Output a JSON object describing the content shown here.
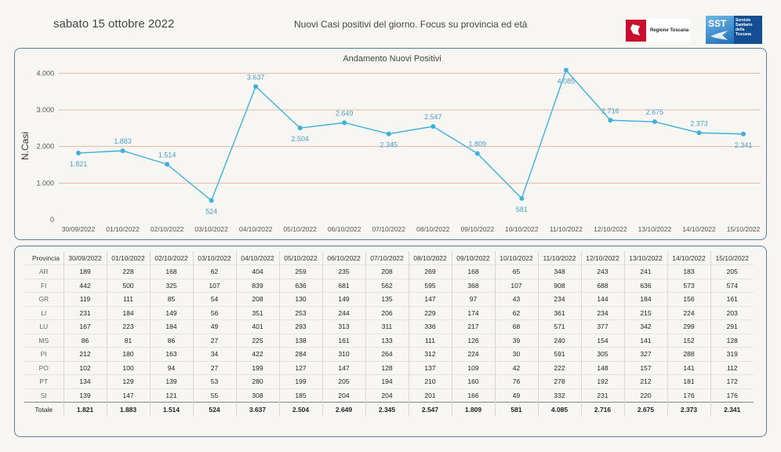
{
  "header": {
    "date": "sabato 15 ottobre 2022",
    "subtitle": "Nuovi Casi positivi del giorno. Focus su provincia ed età",
    "logo_regione": "Regione Toscana",
    "logo_sst_short": "SST",
    "logo_sst_text": "Servizio Sanitario della Toscana"
  },
  "chart_data": {
    "type": "line",
    "title": "Andamento Nuovi Positivi",
    "xlabel": "",
    "ylabel": "N.Casi",
    "ylim": [
      0,
      4200
    ],
    "yticks": [
      0,
      1000,
      2000,
      3000,
      4000
    ],
    "ytick_labels": [
      "0",
      "1.000",
      "2.000",
      "3.000",
      "4.000"
    ],
    "categories": [
      "30/09/2022",
      "01/10/2022",
      "02/10/2022",
      "03/10/2022",
      "04/10/2022",
      "05/10/2022",
      "06/10/2022",
      "07/10/2022",
      "08/10/2022",
      "09/10/2022",
      "10/10/2022",
      "11/10/2022",
      "12/10/2022",
      "13/10/2022",
      "14/10/2022",
      "15/10/2022"
    ],
    "values": [
      1821,
      1883,
      1514,
      524,
      3637,
      2504,
      2649,
      2345,
      2547,
      1809,
      581,
      4085,
      2716,
      2675,
      2373,
      2341
    ],
    "value_labels": [
      "1.821",
      "1.883",
      "1.514",
      "524",
      "3.637",
      "2.504",
      "2.649",
      "2.345",
      "2.547",
      "1.809",
      "581",
      "4.085",
      "2.716",
      "2.675",
      "2.373",
      "2.341"
    ],
    "label_position": [
      "below",
      "above",
      "above",
      "below",
      "above",
      "below",
      "above",
      "below",
      "above",
      "above",
      "below",
      "below",
      "above",
      "above",
      "above",
      "below"
    ],
    "grid": true,
    "colors": {
      "line": "#3fb1d9",
      "grid": "#e3b9a6",
      "label": "#4a9fc8"
    }
  },
  "table": {
    "header_label": "Provincia",
    "columns": [
      "30/09/2022",
      "01/10/2022",
      "02/10/2022",
      "03/10/2022",
      "04/10/2022",
      "05/10/2022",
      "06/10/2022",
      "07/10/2022",
      "08/10/2022",
      "09/10/2022",
      "10/10/2022",
      "11/10/2022",
      "12/10/2022",
      "13/10/2022",
      "14/10/2022",
      "15/10/2022"
    ],
    "rows": [
      {
        "name": "AR",
        "values": [
          "189",
          "228",
          "168",
          "62",
          "404",
          "259",
          "235",
          "208",
          "269",
          "168",
          "65",
          "348",
          "243",
          "241",
          "183",
          "205"
        ]
      },
      {
        "name": "FI",
        "values": [
          "442",
          "500",
          "325",
          "107",
          "839",
          "636",
          "681",
          "562",
          "595",
          "368",
          "107",
          "908",
          "688",
          "636",
          "573",
          "574"
        ]
      },
      {
        "name": "GR",
        "values": [
          "119",
          "111",
          "85",
          "54",
          "208",
          "130",
          "149",
          "135",
          "147",
          "97",
          "43",
          "234",
          "144",
          "184",
          "156",
          "161"
        ]
      },
      {
        "name": "LI",
        "values": [
          "231",
          "184",
          "149",
          "56",
          "351",
          "253",
          "244",
          "206",
          "229",
          "174",
          "62",
          "361",
          "234",
          "215",
          "224",
          "203"
        ]
      },
      {
        "name": "LU",
        "values": [
          "167",
          "223",
          "184",
          "49",
          "401",
          "293",
          "313",
          "311",
          "336",
          "217",
          "68",
          "571",
          "377",
          "342",
          "299",
          "291"
        ]
      },
      {
        "name": "MS",
        "values": [
          "86",
          "81",
          "86",
          "27",
          "225",
          "138",
          "161",
          "133",
          "111",
          "126",
          "39",
          "240",
          "154",
          "141",
          "152",
          "128"
        ]
      },
      {
        "name": "PI",
        "values": [
          "212",
          "180",
          "163",
          "34",
          "422",
          "284",
          "310",
          "264",
          "312",
          "224",
          "30",
          "591",
          "305",
          "327",
          "288",
          "319"
        ]
      },
      {
        "name": "PO",
        "values": [
          "102",
          "100",
          "94",
          "27",
          "199",
          "127",
          "147",
          "128",
          "137",
          "109",
          "42",
          "222",
          "148",
          "157",
          "141",
          "112"
        ]
      },
      {
        "name": "PT",
        "values": [
          "134",
          "129",
          "139",
          "53",
          "280",
          "199",
          "205",
          "194",
          "210",
          "160",
          "76",
          "278",
          "192",
          "212",
          "181",
          "172"
        ]
      },
      {
        "name": "SI",
        "values": [
          "139",
          "147",
          "121",
          "55",
          "308",
          "185",
          "204",
          "204",
          "201",
          "166",
          "49",
          "332",
          "231",
          "220",
          "176",
          "176"
        ]
      }
    ],
    "total": {
      "name": "Totale",
      "values": [
        "1.821",
        "1.883",
        "1.514",
        "524",
        "3.637",
        "2.504",
        "2.649",
        "2.345",
        "2.547",
        "1.809",
        "581",
        "4.085",
        "2.716",
        "2.675",
        "2.373",
        "2.341"
      ]
    }
  }
}
